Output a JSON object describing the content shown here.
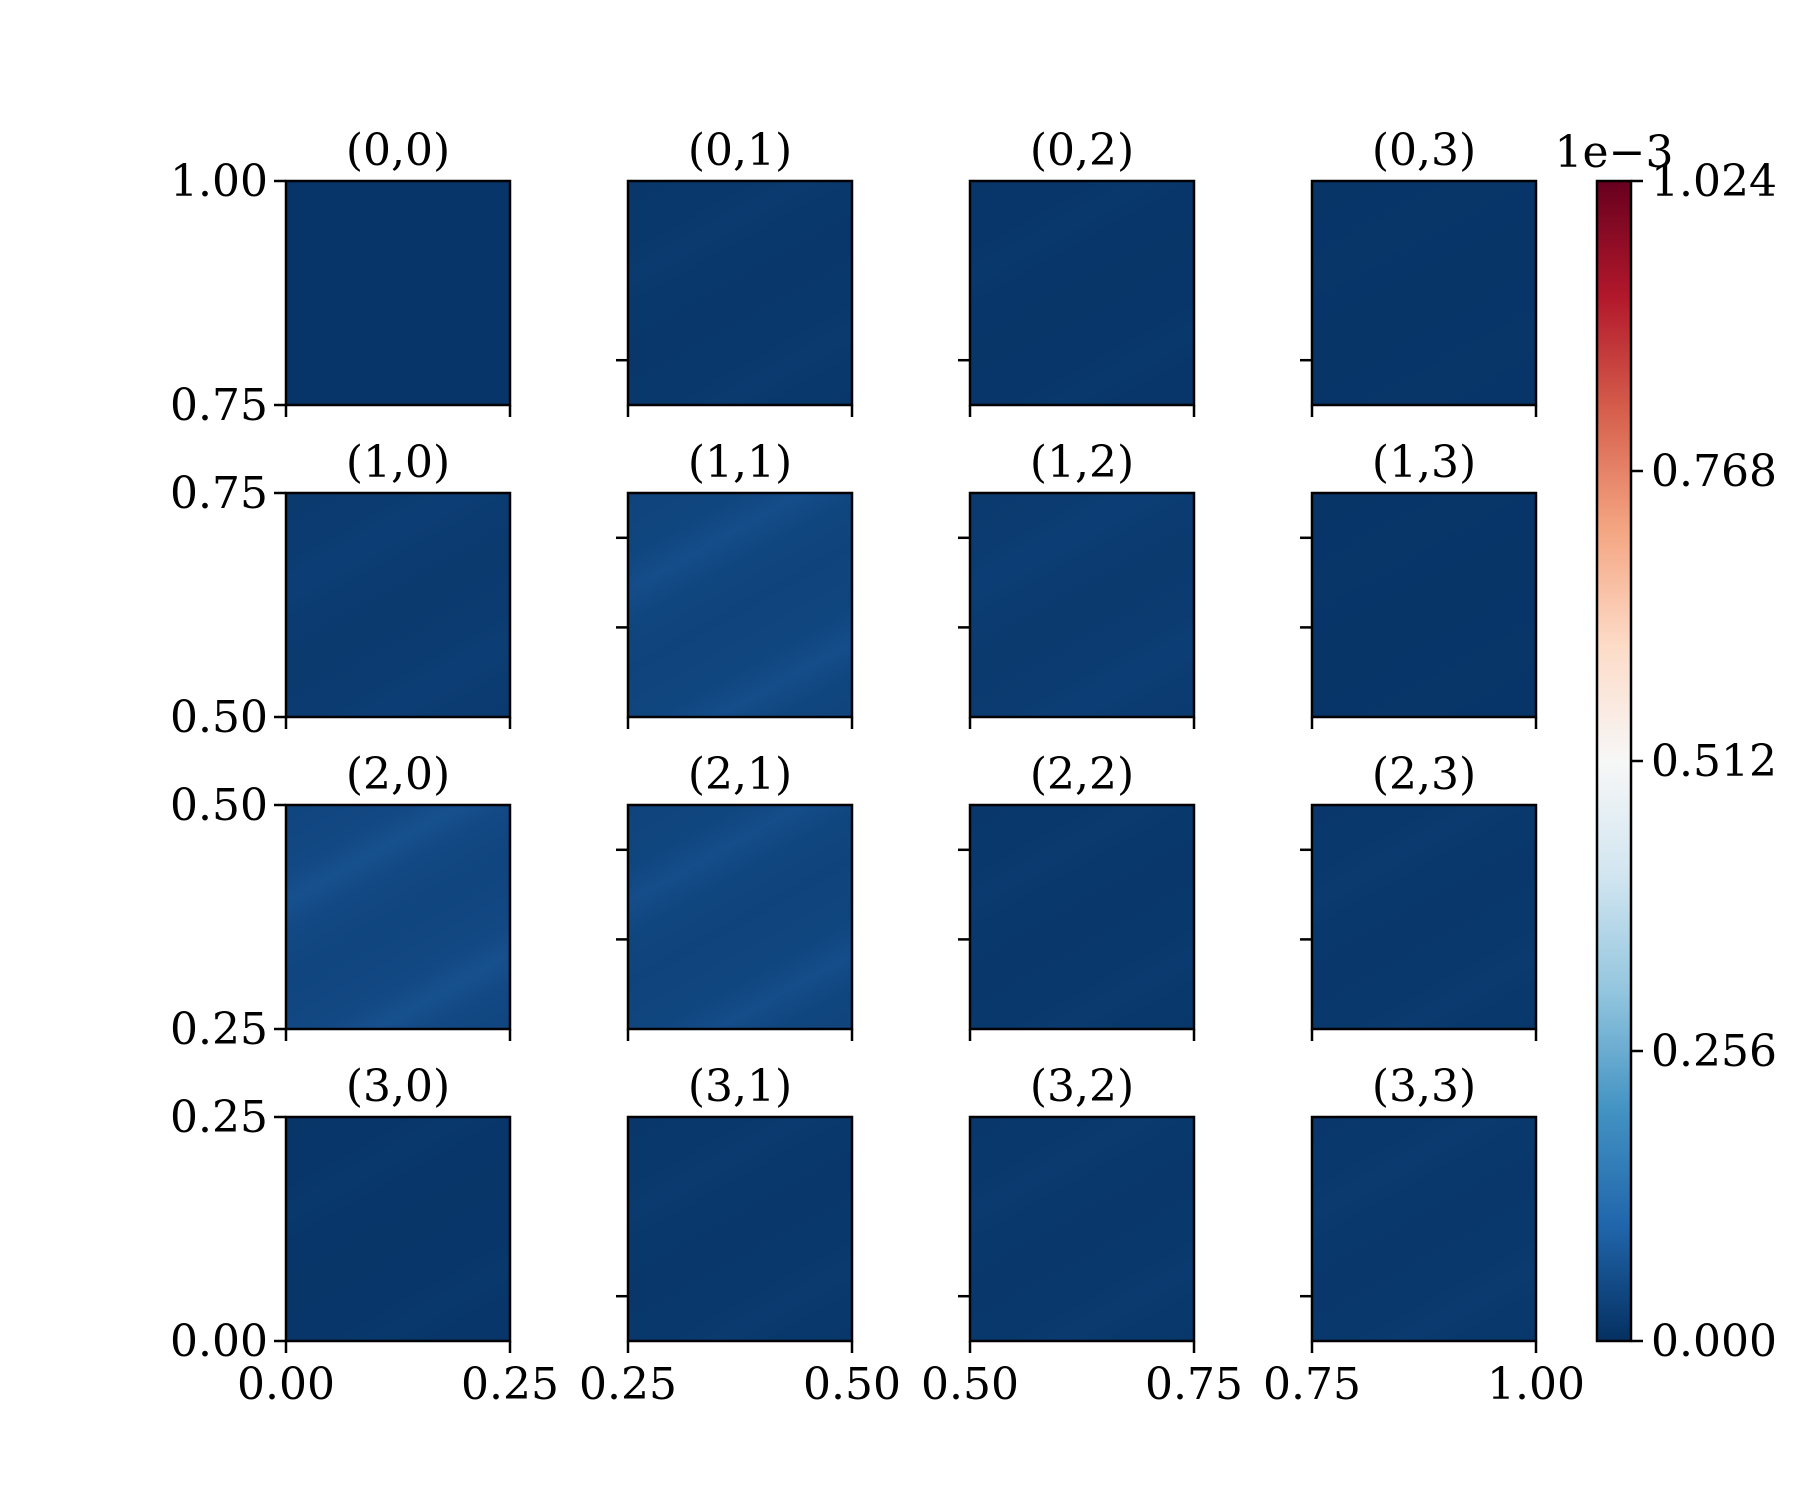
{
  "chart_data": {
    "type": "heatmap",
    "colormap": "RdBu_r",
    "colorbar": {
      "min": 0.0,
      "max": 1.024,
      "ticks": [
        "0.000",
        "0.256",
        "0.512",
        "0.768",
        "1.024"
      ],
      "offset_label": "1e−3",
      "colors": [
        "#053061",
        "#2166ac",
        "#4393c3",
        "#92c5de",
        "#d1e5f0",
        "#f7f7f7",
        "#fddbc7",
        "#f4a582",
        "#d6604d",
        "#b2182b",
        "#67001f"
      ]
    },
    "panels": [
      {
        "title": "(0,0)",
        "row": 0,
        "col": 0,
        "xlim": [
          0.0,
          0.25
        ],
        "ylim": [
          0.75,
          1.0
        ],
        "level": 0.01,
        "stripe": 0.0
      },
      {
        "title": "(0,1)",
        "row": 0,
        "col": 1,
        "xlim": [
          0.25,
          0.5
        ],
        "ylim": [
          0.75,
          1.0
        ],
        "level": 0.015,
        "stripe": 0.004
      },
      {
        "title": "(0,2)",
        "row": 0,
        "col": 2,
        "xlim": [
          0.5,
          0.75
        ],
        "ylim": [
          0.75,
          1.0
        ],
        "level": 0.012,
        "stripe": 0.003
      },
      {
        "title": "(0,3)",
        "row": 0,
        "col": 3,
        "xlim": [
          0.75,
          1.0
        ],
        "ylim": [
          0.75,
          1.0
        ],
        "level": 0.01,
        "stripe": 0.001
      },
      {
        "title": "(1,0)",
        "row": 1,
        "col": 0,
        "xlim": [
          0.0,
          0.25
        ],
        "ylim": [
          0.5,
          0.75
        ],
        "level": 0.02,
        "stripe": 0.006
      },
      {
        "title": "(1,1)",
        "row": 1,
        "col": 1,
        "xlim": [
          0.25,
          0.5
        ],
        "ylim": [
          0.5,
          0.75
        ],
        "level": 0.04,
        "stripe": 0.014
      },
      {
        "title": "(1,2)",
        "row": 1,
        "col": 2,
        "xlim": [
          0.5,
          0.75
        ],
        "ylim": [
          0.5,
          0.75
        ],
        "level": 0.02,
        "stripe": 0.006
      },
      {
        "title": "(1,3)",
        "row": 1,
        "col": 3,
        "xlim": [
          0.75,
          1.0
        ],
        "ylim": [
          0.5,
          0.75
        ],
        "level": 0.01,
        "stripe": 0.001
      },
      {
        "title": "(2,0)",
        "row": 2,
        "col": 0,
        "xlim": [
          0.0,
          0.25
        ],
        "ylim": [
          0.25,
          0.5
        ],
        "level": 0.045,
        "stripe": 0.014
      },
      {
        "title": "(2,1)",
        "row": 2,
        "col": 1,
        "xlim": [
          0.25,
          0.5
        ],
        "ylim": [
          0.25,
          0.5
        ],
        "level": 0.04,
        "stripe": 0.014
      },
      {
        "title": "(2,2)",
        "row": 2,
        "col": 2,
        "xlim": [
          0.5,
          0.75
        ],
        "ylim": [
          0.25,
          0.5
        ],
        "level": 0.015,
        "stripe": 0.004
      },
      {
        "title": "(2,3)",
        "row": 2,
        "col": 3,
        "xlim": [
          0.75,
          1.0
        ],
        "ylim": [
          0.25,
          0.5
        ],
        "level": 0.015,
        "stripe": 0.004
      },
      {
        "title": "(3,0)",
        "row": 3,
        "col": 0,
        "xlim": [
          0.0,
          0.25
        ],
        "ylim": [
          0.0,
          0.25
        ],
        "level": 0.012,
        "stripe": 0.003
      },
      {
        "title": "(3,1)",
        "row": 3,
        "col": 1,
        "xlim": [
          0.25,
          0.5
        ],
        "ylim": [
          0.0,
          0.25
        ],
        "level": 0.015,
        "stripe": 0.004
      },
      {
        "title": "(3,2)",
        "row": 3,
        "col": 2,
        "xlim": [
          0.5,
          0.75
        ],
        "ylim": [
          0.0,
          0.25
        ],
        "level": 0.015,
        "stripe": 0.004
      },
      {
        "title": "(3,3)",
        "row": 3,
        "col": 3,
        "xlim": [
          0.75,
          1.0
        ],
        "ylim": [
          0.0,
          0.25
        ],
        "level": 0.015,
        "stripe": 0.004
      }
    ],
    "y_ticklabels": {
      "0": [
        "1.00",
        "0.75"
      ],
      "1": [
        "0.75",
        "0.50"
      ],
      "2": [
        "0.50",
        "0.25"
      ],
      "3": [
        "0.25",
        "0.00"
      ]
    },
    "x_ticklabels": {
      "0": [
        "0.00",
        "0.25"
      ],
      "1": [
        "0.25",
        "0.50"
      ],
      "2": [
        "0.50",
        "0.75"
      ],
      "3": [
        "0.75",
        "1.00"
      ]
    },
    "grid": false
  }
}
